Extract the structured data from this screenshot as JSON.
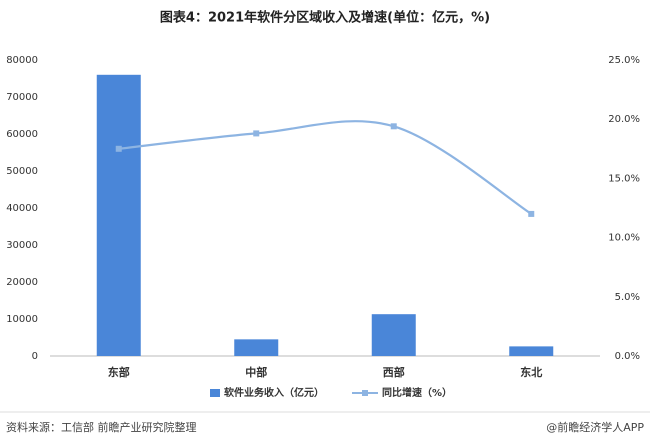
{
  "chart_data": {
    "type": "bar",
    "title": "图表4：2021年软件分区域收入及增速(单位：亿元，%)",
    "categories": [
      "东部",
      "中部",
      "西部",
      "东北"
    ],
    "series": [
      {
        "name": "软件业务收入（亿元）",
        "type": "bar",
        "color": "#4a86d8",
        "values": [
          76000,
          4500,
          11300,
          2600
        ]
      },
      {
        "name": "同比增速（%）",
        "type": "line",
        "color": "#8db4e2",
        "axis": "y2",
        "values": [
          17.5,
          18.8,
          19.4,
          12.0
        ]
      }
    ],
    "ylim": [
      0,
      80000
    ],
    "yticks": [
      0,
      10000,
      20000,
      30000,
      40000,
      50000,
      60000,
      70000,
      80000
    ],
    "y2lim": [
      0,
      25
    ],
    "y2ticks": [
      {
        "value": 0,
        "label": "0.0%"
      },
      {
        "value": 5,
        "label": "5.0%"
      },
      {
        "value": 10,
        "label": "10.0%"
      },
      {
        "value": 15,
        "label": "15.0%"
      },
      {
        "value": 20,
        "label": "20.0%"
      },
      {
        "value": 25,
        "label": "25.0%"
      }
    ],
    "grid": false,
    "legend": "bottom",
    "source": "资料来源：工信部 前瞻产业研究院整理",
    "credit": "@前瞻经济学人APP"
  }
}
